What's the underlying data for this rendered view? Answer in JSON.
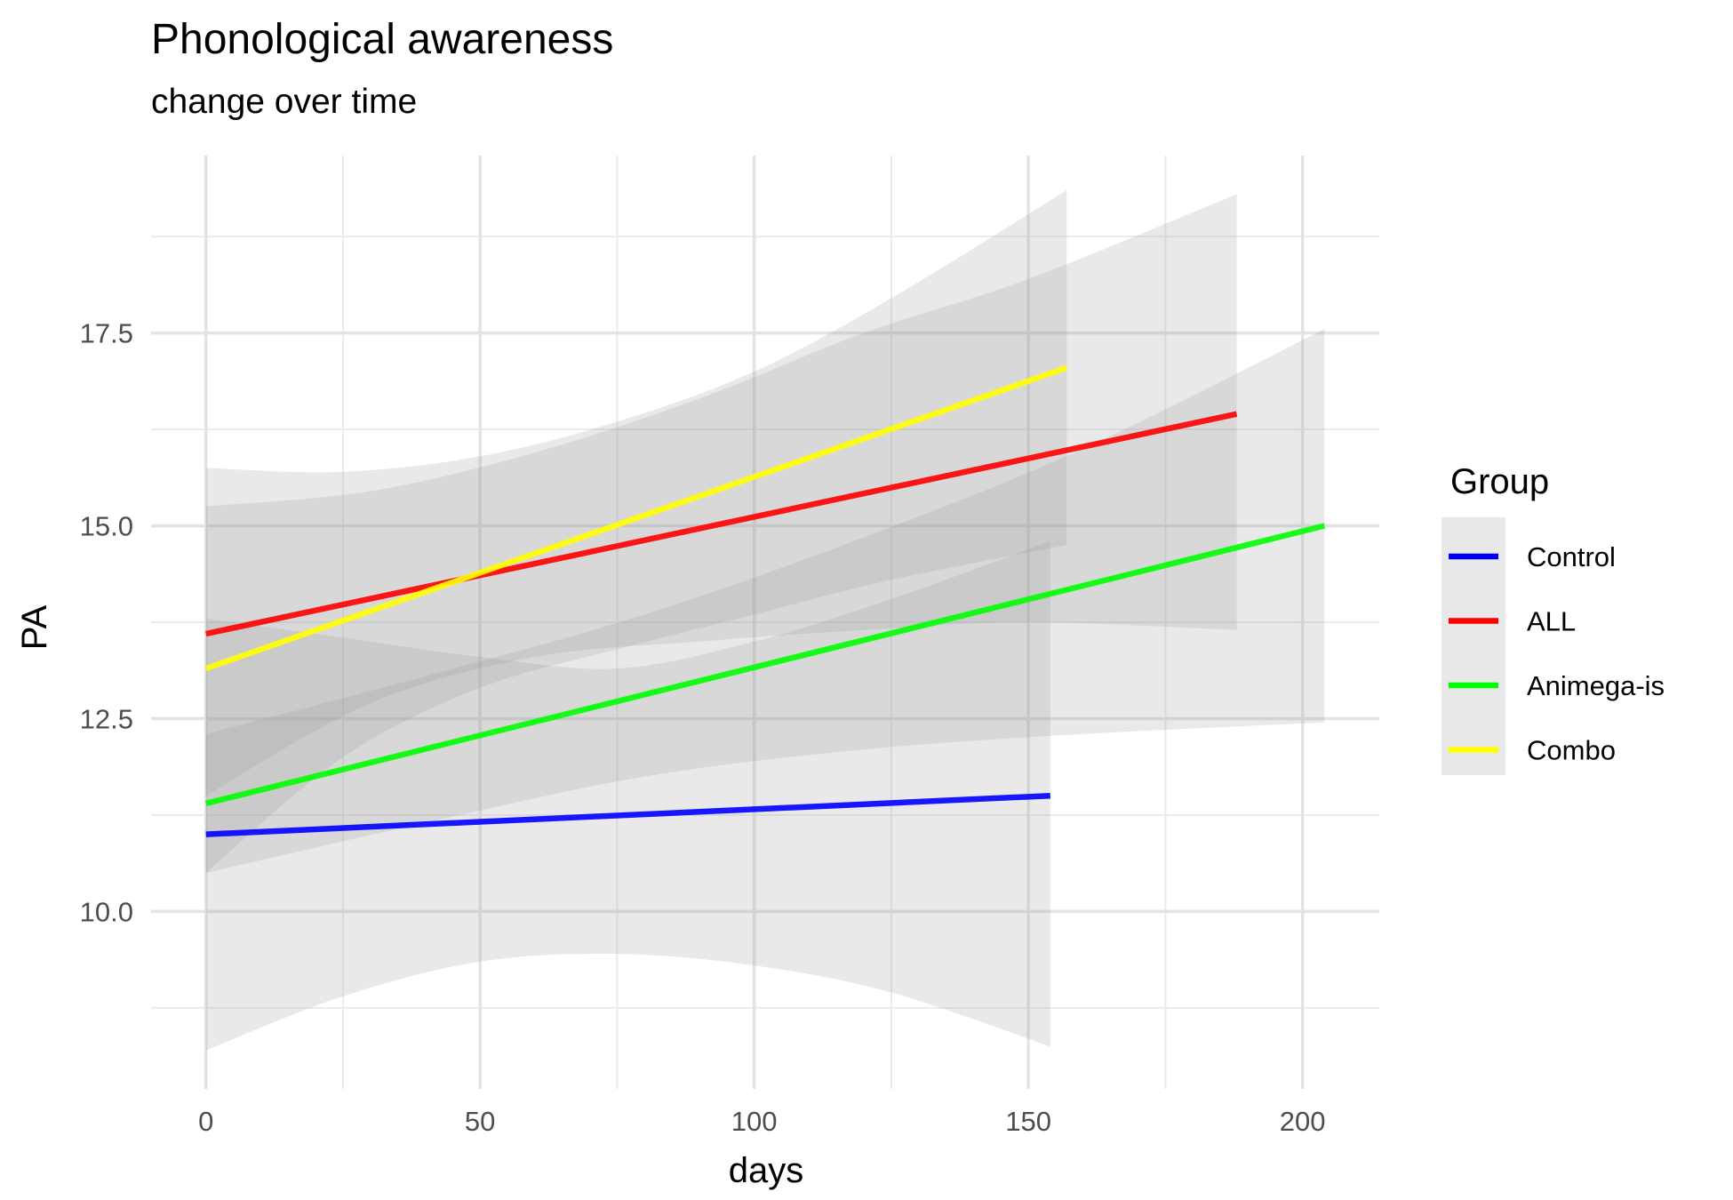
{
  "chart_data": {
    "type": "line",
    "title": "Phonological awareness",
    "subtitle": "change over time",
    "xlabel": "days",
    "ylabel": "PA",
    "xlim": [
      -10,
      214
    ],
    "ylim": [
      7.7,
      19.8
    ],
    "x_ticks": [
      0,
      50,
      100,
      150,
      200
    ],
    "x_tick_labels": [
      "0",
      "50",
      "100",
      "150",
      "200"
    ],
    "y_ticks": [
      10.0,
      12.5,
      15.0,
      17.5
    ],
    "y_tick_labels": [
      "10.0",
      "12.5",
      "15.0",
      "17.5"
    ],
    "grid": true,
    "legend_title": "Group",
    "legend_position": "right",
    "series": [
      {
        "name": "Control",
        "color": "#0000ff",
        "x": [
          0,
          154
        ],
        "y": [
          11.0,
          11.5
        ],
        "ribbon": {
          "x": [
            0,
            25,
            50,
            75,
            100,
            125,
            154
          ],
          "lower": [
            8.2,
            8.9,
            9.35,
            9.45,
            9.3,
            8.95,
            8.25
          ],
          "upper": [
            13.8,
            13.55,
            13.3,
            13.15,
            13.5,
            14.05,
            14.8
          ]
        }
      },
      {
        "name": "ALL",
        "color": "#ff0000",
        "x": [
          0,
          188
        ],
        "y": [
          13.6,
          16.45
        ],
        "ribbon": {
          "x": [
            0,
            30,
            60,
            90,
            120,
            150,
            188
          ],
          "lower": [
            11.5,
            12.7,
            13.3,
            13.5,
            13.65,
            13.75,
            13.65
          ],
          "upper": [
            15.25,
            15.45,
            15.95,
            16.65,
            17.5,
            18.2,
            19.3
          ]
        }
      },
      {
        "name": "Animega-is",
        "color": "#00ff00",
        "x": [
          0,
          204
        ],
        "y": [
          11.4,
          15.0
        ],
        "ribbon": {
          "x": [
            0,
            40,
            80,
            120,
            160,
            204
          ],
          "lower": [
            10.5,
            11.15,
            11.75,
            12.1,
            12.3,
            12.45
          ],
          "upper": [
            12.3,
            13.05,
            13.85,
            14.85,
            16.0,
            17.55
          ]
        }
      },
      {
        "name": "Combo",
        "color": "#ffff00",
        "x": [
          0,
          157
        ],
        "y": [
          13.15,
          17.05
        ],
        "ribbon": {
          "x": [
            0,
            25,
            50,
            75,
            100,
            125,
            157
          ],
          "lower": [
            10.5,
            12.0,
            12.9,
            13.4,
            13.85,
            14.3,
            14.75
          ],
          "upper": [
            15.75,
            15.7,
            15.9,
            16.35,
            17.0,
            17.95,
            19.35
          ]
        }
      }
    ]
  }
}
